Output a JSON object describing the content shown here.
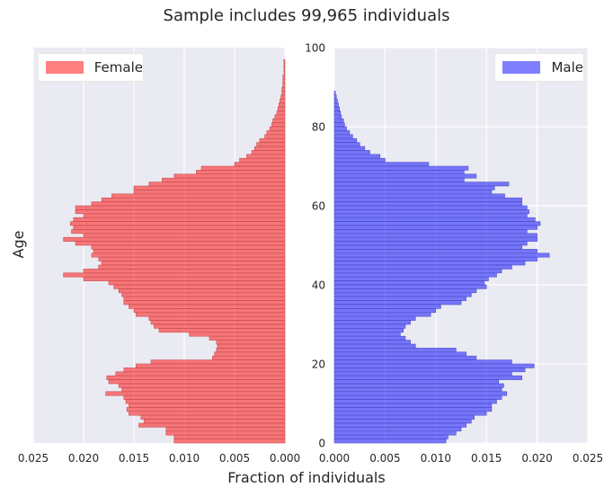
{
  "figure_title": "Sample includes 99,965 individuals",
  "xlabel": "Fraction of individuals",
  "ylabel": "Age",
  "colors": {
    "background": "#eaeaf2",
    "grid": "#ffffff",
    "female": "#ff0000",
    "male": "#0000ff",
    "text": "#262626"
  },
  "chart_data": [
    {
      "type": "bar",
      "orientation": "horizontal",
      "panel": "female",
      "series": [
        {
          "name": "Female",
          "values": [
            0.011,
            0.011,
            0.0118,
            0.0118,
            0.0145,
            0.014,
            0.0143,
            0.0155,
            0.0157,
            0.0155,
            0.0158,
            0.016,
            0.0178,
            0.0162,
            0.0165,
            0.0175,
            0.0177,
            0.0168,
            0.016,
            0.0148,
            0.0133,
            0.0072,
            0.007,
            0.0068,
            0.0067,
            0.0068,
            0.0075,
            0.0095,
            0.0125,
            0.013,
            0.0133,
            0.0135,
            0.0148,
            0.015,
            0.0155,
            0.016,
            0.016,
            0.0162,
            0.0165,
            0.017,
            0.0175,
            0.02,
            0.022,
            0.02,
            0.0185,
            0.0182,
            0.0185,
            0.0192,
            0.019,
            0.0192,
            0.0208,
            0.022,
            0.02,
            0.0212,
            0.021,
            0.0213,
            0.021,
            0.02,
            0.0208,
            0.0208,
            0.0192,
            0.0182,
            0.0172,
            0.015,
            0.015,
            0.0135,
            0.0122,
            0.011,
            0.0088,
            0.0083,
            0.005,
            0.0045,
            0.0038,
            0.0033,
            0.003,
            0.0028,
            0.0025,
            0.002,
            0.0018,
            0.0015,
            0.0013,
            0.0012,
            0.001,
            0.0008,
            0.0007,
            0.0006,
            0.0005,
            0.0004,
            0.0003,
            0.0003,
            0.0002,
            0.0002,
            0.0002,
            0.0001,
            0.0001,
            0.0001,
            0.0001,
            0.0,
            0.0,
            0.0
          ]
        }
      ],
      "bin_start": 0,
      "bin_width": 1,
      "xlim": [
        0.025,
        0
      ],
      "xticks": [
        "0.025",
        "0.020",
        "0.015",
        "0.010",
        "0.005",
        "0.000"
      ],
      "ylim": [
        0,
        100
      ],
      "grid": true,
      "legend": "top-left"
    },
    {
      "type": "bar",
      "orientation": "horizontal",
      "panel": "male",
      "series": [
        {
          "name": "Male",
          "values": [
            0.011,
            0.0112,
            0.012,
            0.0125,
            0.013,
            0.0135,
            0.0138,
            0.015,
            0.0155,
            0.0155,
            0.016,
            0.0165,
            0.017,
            0.0165,
            0.0167,
            0.0162,
            0.0185,
            0.0175,
            0.0188,
            0.0197,
            0.0175,
            0.014,
            0.013,
            0.012,
            0.008,
            0.0075,
            0.007,
            0.0065,
            0.0068,
            0.007,
            0.0075,
            0.008,
            0.0095,
            0.01,
            0.0105,
            0.0125,
            0.013,
            0.0135,
            0.014,
            0.015,
            0.0148,
            0.0152,
            0.016,
            0.0165,
            0.0175,
            0.0188,
            0.02,
            0.0212,
            0.02,
            0.0185,
            0.019,
            0.02,
            0.02,
            0.019,
            0.02,
            0.0203,
            0.0198,
            0.019,
            0.0192,
            0.019,
            0.0185,
            0.0185,
            0.0168,
            0.0155,
            0.0158,
            0.0172,
            0.0128,
            0.014,
            0.0128,
            0.0132,
            0.0093,
            0.005,
            0.0045,
            0.0035,
            0.003,
            0.0025,
            0.0022,
            0.0018,
            0.0015,
            0.0012,
            0.001,
            0.0009,
            0.0007,
            0.0006,
            0.0005,
            0.0004,
            0.0003,
            0.0002,
            0.0001,
            0.0
          ]
        }
      ],
      "bin_start": 0,
      "bin_width": 1,
      "xlim": [
        0,
        0.025
      ],
      "xticks": [
        "0.000",
        "0.005",
        "0.010",
        "0.015",
        "0.020",
        "0.025"
      ],
      "ylim": [
        0,
        100
      ],
      "yticks": [
        "0",
        "20",
        "40",
        "60",
        "80",
        "100"
      ],
      "grid": true,
      "legend": "top-right"
    }
  ]
}
